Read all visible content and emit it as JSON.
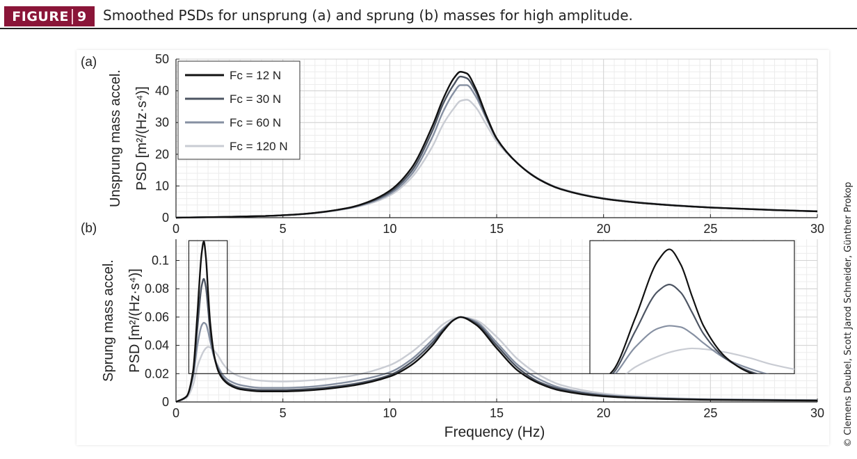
{
  "header": {
    "badge_word": "FIGURE",
    "badge_number": "9",
    "caption": "Smoothed PSDs for unsprung (a) and sprung (b) masses for high amplitude."
  },
  "credit": "© Clemens Deubel, Scott Jarod Schneider, Günther Prokop",
  "colors": {
    "badge_bg": "#8a1538",
    "series": [
      "#111111",
      "#4c5462",
      "#8690a2",
      "#c9ccd3"
    ]
  },
  "chart_data": [
    {
      "panel": "(a)",
      "type": "line",
      "xlabel": "",
      "ylabel_lines": [
        "Unsprung  mass accel.",
        "PSD [m²/(Hz·s⁴)]"
      ],
      "xlim": [
        0,
        30
      ],
      "ylim": [
        0,
        50
      ],
      "xticks": [
        0,
        5,
        10,
        15,
        20,
        25,
        30
      ],
      "yticks": [
        0,
        10,
        20,
        30,
        40,
        50
      ],
      "grid": true,
      "legend": "top-left",
      "x": [
        0,
        2,
        4,
        6,
        8,
        9,
        10,
        11,
        12,
        12.5,
        13,
        13.3,
        13.6,
        14,
        14.5,
        15,
        16,
        17,
        18,
        20,
        22,
        25,
        28,
        30
      ],
      "series": [
        {
          "name": "Fc = 12 N",
          "values": [
            0,
            0.2,
            0.5,
            1.2,
            3.0,
            5.0,
            8.5,
            15.5,
            29.0,
            37.5,
            44.0,
            46.0,
            45.5,
            41.0,
            32.5,
            25.0,
            17.0,
            12.0,
            9.0,
            6.0,
            4.5,
            3.2,
            2.4,
            2.0
          ]
        },
        {
          "name": "Fc = 30 N",
          "values": [
            0,
            0.2,
            0.5,
            1.2,
            3.0,
            4.8,
            8.0,
            14.5,
            27.5,
            36.0,
            42.0,
            44.5,
            44.0,
            40.0,
            32.0,
            25.0,
            17.0,
            12.0,
            9.0,
            6.0,
            4.5,
            3.2,
            2.4,
            2.0
          ]
        },
        {
          "name": "Fc = 60 N",
          "values": [
            0,
            0.2,
            0.5,
            1.2,
            2.9,
            4.6,
            7.5,
            13.5,
            25.5,
            33.5,
            39.5,
            41.8,
            41.8,
            38.5,
            31.5,
            24.8,
            17.0,
            12.0,
            9.0,
            6.0,
            4.5,
            3.2,
            2.4,
            2.0
          ]
        },
        {
          "name": "Fc = 120 N",
          "values": [
            0,
            0.2,
            0.5,
            1.1,
            2.8,
            4.3,
            7.0,
            12.5,
            22.5,
            29.5,
            34.5,
            36.8,
            37.2,
            35.0,
            29.5,
            24.0,
            17.0,
            12.2,
            9.2,
            6.2,
            4.7,
            3.3,
            2.5,
            2.0
          ]
        }
      ]
    },
    {
      "panel": "(b)",
      "type": "line",
      "xlabel": "Frequency (Hz)",
      "ylabel_lines": [
        "Sprung  mass accel.",
        "PSD [m²/(Hz·s⁴)]"
      ],
      "xlim": [
        0,
        30
      ],
      "ylim": [
        0,
        0.115
      ],
      "xticks": [
        0,
        5,
        10,
        15,
        20,
        25,
        30
      ],
      "yticks": [
        0,
        0.02,
        0.04,
        0.06,
        0.08,
        0.1
      ],
      "grid": true,
      "zoom_box": {
        "x": [
          0.6,
          2.4
        ],
        "y": [
          0.02,
          0.12
        ]
      },
      "x": [
        0,
        0.5,
        0.8,
        1.0,
        1.2,
        1.3,
        1.4,
        1.5,
        1.6,
        1.8,
        2.0,
        2.2,
        2.5,
        3.0,
        4.0,
        5.0,
        6.0,
        8.0,
        10.0,
        11.0,
        12.0,
        12.5,
        13.0,
        13.3,
        14.0,
        15.0,
        16.0,
        17.0,
        18.0,
        20.0,
        22.0,
        25.0,
        30.0
      ],
      "series": [
        {
          "name": "Fc = 12 N",
          "values": [
            0,
            0.004,
            0.022,
            0.062,
            0.105,
            0.1135,
            0.102,
            0.078,
            0.056,
            0.032,
            0.021,
            0.016,
            0.012,
            0.009,
            0.0075,
            0.0075,
            0.008,
            0.011,
            0.018,
            0.026,
            0.04,
            0.05,
            0.058,
            0.06,
            0.055,
            0.038,
            0.022,
            0.013,
            0.008,
            0.004,
            0.0025,
            0.0015,
            0.001
          ]
        },
        {
          "name": "Fc = 30 N",
          "values": [
            0,
            0.004,
            0.02,
            0.052,
            0.082,
            0.087,
            0.081,
            0.066,
            0.05,
            0.031,
            0.022,
            0.017,
            0.013,
            0.01,
            0.0085,
            0.0085,
            0.009,
            0.012,
            0.019,
            0.028,
            0.042,
            0.051,
            0.058,
            0.06,
            0.056,
            0.04,
            0.024,
            0.014,
            0.009,
            0.0045,
            0.0028,
            0.0017,
            0.001
          ]
        },
        {
          "name": "Fc = 60 N",
          "values": [
            0,
            0.004,
            0.018,
            0.04,
            0.054,
            0.056,
            0.055,
            0.05,
            0.043,
            0.031,
            0.024,
            0.019,
            0.015,
            0.012,
            0.01,
            0.01,
            0.0105,
            0.014,
            0.021,
            0.03,
            0.044,
            0.052,
            0.058,
            0.06,
            0.057,
            0.042,
            0.026,
            0.016,
            0.01,
            0.005,
            0.003,
            0.0018,
            0.0012
          ]
        },
        {
          "name": "Fc = 120 N",
          "values": [
            0,
            0.003,
            0.012,
            0.025,
            0.033,
            0.036,
            0.038,
            0.039,
            0.0385,
            0.036,
            0.032,
            0.027,
            0.022,
            0.018,
            0.015,
            0.0145,
            0.015,
            0.018,
            0.026,
            0.035,
            0.048,
            0.055,
            0.059,
            0.06,
            0.058,
            0.046,
            0.03,
            0.019,
            0.012,
            0.006,
            0.0035,
            0.002,
            0.0014
          ]
        }
      ]
    }
  ]
}
